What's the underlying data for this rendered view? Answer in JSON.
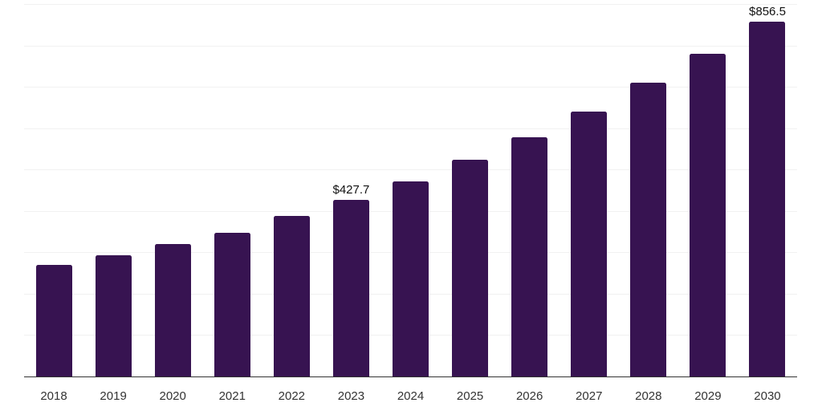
{
  "chart_data": {
    "type": "bar",
    "title": "",
    "xlabel": "",
    "ylabel": "",
    "categories": [
      "2018",
      "2019",
      "2020",
      "2021",
      "2022",
      "2023",
      "2024",
      "2025",
      "2026",
      "2027",
      "2028",
      "2029",
      "2030"
    ],
    "values": [
      270,
      293,
      320,
      348,
      387,
      427.7,
      471,
      524,
      578,
      640,
      710,
      779,
      856.5
    ],
    "bar_labels": [
      "",
      "",
      "",
      "",
      "",
      "$427.7",
      "",
      "",
      "",
      "",
      "",
      "",
      "$856.5"
    ],
    "ylim": [
      0,
      900
    ],
    "gridline_step": 100,
    "grid": "horizontal",
    "legend": "none",
    "y_axis_labels_visible": false,
    "colors": {
      "bar": "#371351",
      "axis_line": "#333333",
      "gridline": "#f1f1f1",
      "tick_label": "#333333",
      "data_label": "#111111",
      "background": "#ffffff"
    }
  }
}
